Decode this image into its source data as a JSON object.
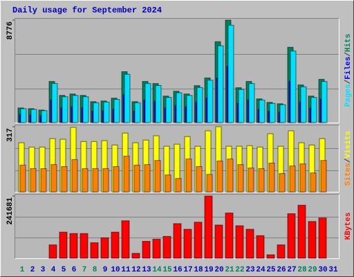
{
  "chart_data": [
    {
      "type": "bar",
      "title": "Daily usage for September 2024",
      "title_color": "#0000c0",
      "ylim": [
        0,
        8776
      ],
      "yticks": [
        8776
      ],
      "grid": true,
      "legend_separator": "/",
      "series": [
        {
          "name": "Hits",
          "color": "#00805c",
          "values": [
            1254,
            1194,
            1075,
            3522,
            2328,
            2448,
            2328,
            1791,
            1851,
            2090,
            4358,
            1791,
            3522,
            3343,
            2269,
            2687,
            2448,
            3164,
            3821,
            6925,
            8776,
            2985,
            3522,
            2030,
            1731,
            1612,
            6448,
            3224,
            2269,
            3701,
            null
          ]
        },
        {
          "name": "Files",
          "color": "#0000ff",
          "values": [
            690,
            657,
            591,
            1937,
            1280,
            1346,
            1280,
            985,
            1018,
            1150,
            2397,
            985,
            1937,
            1839,
            1248,
            1478,
            1346,
            1740,
            2102,
            3809,
            4827,
            1642,
            1937,
            1117,
            952,
            887,
            3546,
            1773,
            1248,
            2036,
            null
          ]
        },
        {
          "name": "Pages",
          "color": "#00e0ff",
          "values": [
            1192,
            1134,
            1021,
            3346,
            2212,
            2326,
            2212,
            1701,
            1758,
            1986,
            4140,
            1701,
            3346,
            3176,
            2156,
            2553,
            2326,
            3006,
            3630,
            6579,
            8337,
            2836,
            3346,
            1929,
            1644,
            1531,
            6126,
            3063,
            2156,
            3516,
            null
          ]
        }
      ]
    },
    {
      "type": "bar",
      "ylim": [
        0,
        317
      ],
      "yticks": [
        317
      ],
      "grid": true,
      "legend_separator": "/",
      "series": [
        {
          "name": "Visits",
          "color": "#ffff00",
          "values": [
            239,
            218,
            218,
            259,
            256,
            314,
            245,
            245,
            249,
            228,
            286,
            239,
            252,
            273,
            222,
            232,
            269,
            222,
            297,
            317,
            222,
            222,
            225,
            218,
            283,
            222,
            297,
            239,
            228,
            259,
            null
          ]
        },
        {
          "name": "Sites",
          "color": "#ff8000",
          "values": [
            130,
            113,
            113,
            133,
            123,
            157,
            113,
            113,
            113,
            123,
            174,
            130,
            133,
            153,
            82,
            65,
            160,
            123,
            85,
            150,
            160,
            133,
            116,
            113,
            140,
            89,
            126,
            136,
            92,
            153,
            null
          ]
        }
      ]
    },
    {
      "type": "bar",
      "ylim": [
        0,
        241681
      ],
      "yticks": [
        241681
      ],
      "grid": true,
      "categories": [
        "1",
        "2",
        "3",
        "4",
        "5",
        "6",
        "7",
        "8",
        "9",
        "10",
        "11",
        "12",
        "13",
        "14",
        "15",
        "16",
        "17",
        "18",
        "19",
        "20",
        "21",
        "22",
        "23",
        "24",
        "25",
        "26",
        "27",
        "28",
        "29",
        "30",
        "31"
      ],
      "category_colors": [
        "#00805c",
        "#0000c0",
        "#0000c0",
        "#0000c0",
        "#0000c0",
        "#0000c0",
        "#00805c",
        "#00805c",
        "#0000c0",
        "#0000c0",
        "#0000c0",
        "#0000c0",
        "#0000c0",
        "#00805c",
        "#00805c",
        "#0000c0",
        "#0000c0",
        "#0000c0",
        "#0000c0",
        "#0000c0",
        "#00805c",
        "#00805c",
        "#0000c0",
        "#0000c0",
        "#0000c0",
        "#0000c0",
        "#0000c0",
        "#00805c",
        "#00805c",
        "#0000c0",
        "#0000c0"
      ],
      "series": [
        {
          "name": "KBytes",
          "color": "#ff0000",
          "values": [
            0,
            0,
            0,
            52178,
            101614,
            96122,
            96122,
            60420,
            79650,
            101614,
            145559,
            19225,
            65913,
            74151,
            85138,
            134572,
            112602,
            140066,
            241681,
            129080,
            175768,
            126334,
            112602,
            87884,
            13732,
            52180,
            173021,
            205978,
            142810,
            156542,
            null
          ]
        }
      ]
    }
  ]
}
